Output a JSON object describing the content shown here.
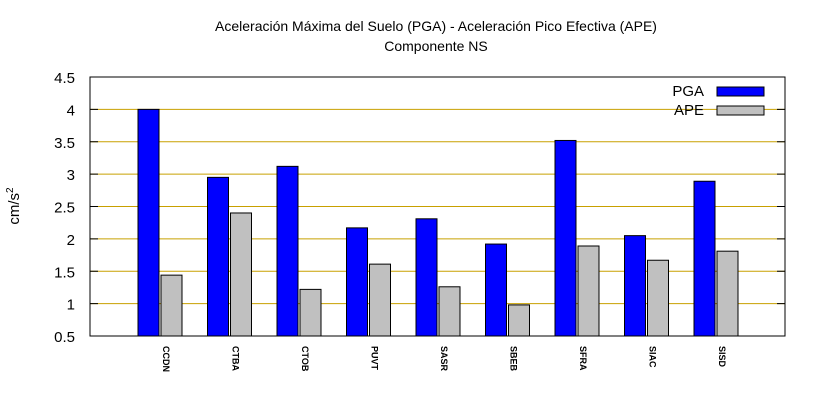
{
  "chart_data": {
    "type": "bar",
    "title": "Aceleración Máxima del Suelo (PGA) -  Aceleración Pico Efectiva (APE)",
    "subtitle": "Componente NS",
    "ylabel": "cm/s",
    "ylabel_exponent": "2",
    "ylim": [
      0.5,
      4.5
    ],
    "yticks": [
      0.5,
      1,
      1.5,
      2,
      2.5,
      3,
      3.5,
      4,
      4.5
    ],
    "ytick_labels": [
      "0.5",
      "1",
      "1.5",
      "2",
      "2.5",
      "3",
      "3.5",
      "4",
      "4.5"
    ],
    "grid": true,
    "legend_position": "top-right",
    "categories": [
      "CCDN",
      "CTBA",
      "CTOB",
      "PUVT",
      "SASR",
      "SBEB",
      "SFRA",
      "SIAC",
      "SISD"
    ],
    "series": [
      {
        "name": "PGA",
        "color": "#0000ff",
        "values": [
          4.0,
          2.95,
          3.12,
          2.17,
          2.31,
          1.92,
          3.52,
          2.05,
          2.89
        ]
      },
      {
        "name": "APE",
        "color": "#c0c0c0",
        "values": [
          1.44,
          2.4,
          1.22,
          1.61,
          1.26,
          0.98,
          1.89,
          1.67,
          1.81
        ]
      }
    ],
    "colors": {
      "grid": "#c8a000",
      "axis": "#000000"
    }
  }
}
